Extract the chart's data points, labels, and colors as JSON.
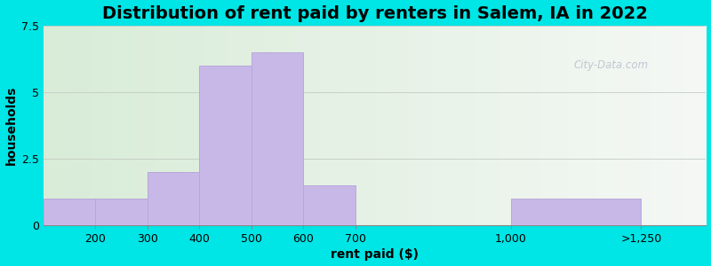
{
  "title": "Distribution of rent paid by renters in Salem, IA in 2022",
  "xlabel": "rent paid ($)",
  "ylabel": "households",
  "tick_positions": [
    200,
    300,
    400,
    500,
    600,
    700,
    1000,
    1250
  ],
  "tick_labels": [
    "200",
    "300",
    "400",
    "500",
    "600",
    "700",
    "1,000",
    ">1,250"
  ],
  "bar_centers": [
    150,
    250,
    350,
    450,
    550,
    650,
    850,
    1125
  ],
  "bar_widths": [
    100,
    100,
    100,
    100,
    100,
    100,
    300,
    250
  ],
  "values": [
    1,
    1,
    2,
    6,
    6.5,
    1.5,
    0,
    1
  ],
  "bar_color": "#c8b8e8",
  "bar_edgecolor": "#b8a8d8",
  "ylim": [
    0,
    7.5
  ],
  "yticks": [
    0,
    2.5,
    5,
    7.5
  ],
  "xlim": [
    100,
    1375
  ],
  "background_color_left": "#d8ecd8",
  "background_color_right": "#f0f5f0",
  "outer_background": "#00e5e5",
  "title_fontsize": 14,
  "axis_label_fontsize": 10,
  "tick_fontsize": 9,
  "watermark": "City-Data.com"
}
